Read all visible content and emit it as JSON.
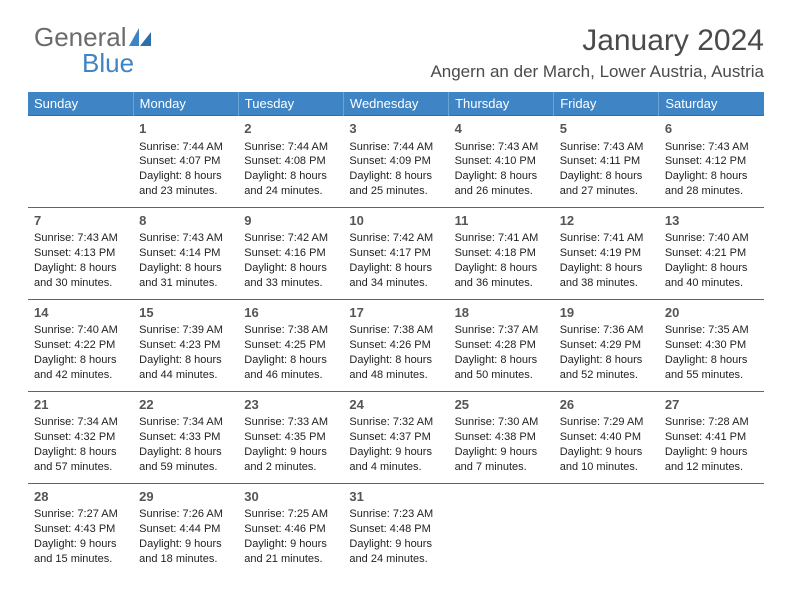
{
  "brand": {
    "part1": "General",
    "part2": "Blue"
  },
  "title": "January 2024",
  "location": "Angern an der March, Lower Austria, Austria",
  "colors": {
    "header_bg": "#3f84c4",
    "header_text": "#ffffff",
    "row_border": "#2f6fa8",
    "brand_gray": "#6b6b6b",
    "brand_blue": "#3f84c4"
  },
  "dayHeaders": [
    "Sunday",
    "Monday",
    "Tuesday",
    "Wednesday",
    "Thursday",
    "Friday",
    "Saturday"
  ],
  "weeks": [
    [
      {
        "num": "",
        "sunrise": "",
        "sunset": "",
        "daylight": ""
      },
      {
        "num": "1",
        "sunrise": "Sunrise: 7:44 AM",
        "sunset": "Sunset: 4:07 PM",
        "daylight": "Daylight: 8 hours and 23 minutes."
      },
      {
        "num": "2",
        "sunrise": "Sunrise: 7:44 AM",
        "sunset": "Sunset: 4:08 PM",
        "daylight": "Daylight: 8 hours and 24 minutes."
      },
      {
        "num": "3",
        "sunrise": "Sunrise: 7:44 AM",
        "sunset": "Sunset: 4:09 PM",
        "daylight": "Daylight: 8 hours and 25 minutes."
      },
      {
        "num": "4",
        "sunrise": "Sunrise: 7:43 AM",
        "sunset": "Sunset: 4:10 PM",
        "daylight": "Daylight: 8 hours and 26 minutes."
      },
      {
        "num": "5",
        "sunrise": "Sunrise: 7:43 AM",
        "sunset": "Sunset: 4:11 PM",
        "daylight": "Daylight: 8 hours and 27 minutes."
      },
      {
        "num": "6",
        "sunrise": "Sunrise: 7:43 AM",
        "sunset": "Sunset: 4:12 PM",
        "daylight": "Daylight: 8 hours and 28 minutes."
      }
    ],
    [
      {
        "num": "7",
        "sunrise": "Sunrise: 7:43 AM",
        "sunset": "Sunset: 4:13 PM",
        "daylight": "Daylight: 8 hours and 30 minutes."
      },
      {
        "num": "8",
        "sunrise": "Sunrise: 7:43 AM",
        "sunset": "Sunset: 4:14 PM",
        "daylight": "Daylight: 8 hours and 31 minutes."
      },
      {
        "num": "9",
        "sunrise": "Sunrise: 7:42 AM",
        "sunset": "Sunset: 4:16 PM",
        "daylight": "Daylight: 8 hours and 33 minutes."
      },
      {
        "num": "10",
        "sunrise": "Sunrise: 7:42 AM",
        "sunset": "Sunset: 4:17 PM",
        "daylight": "Daylight: 8 hours and 34 minutes."
      },
      {
        "num": "11",
        "sunrise": "Sunrise: 7:41 AM",
        "sunset": "Sunset: 4:18 PM",
        "daylight": "Daylight: 8 hours and 36 minutes."
      },
      {
        "num": "12",
        "sunrise": "Sunrise: 7:41 AM",
        "sunset": "Sunset: 4:19 PM",
        "daylight": "Daylight: 8 hours and 38 minutes."
      },
      {
        "num": "13",
        "sunrise": "Sunrise: 7:40 AM",
        "sunset": "Sunset: 4:21 PM",
        "daylight": "Daylight: 8 hours and 40 minutes."
      }
    ],
    [
      {
        "num": "14",
        "sunrise": "Sunrise: 7:40 AM",
        "sunset": "Sunset: 4:22 PM",
        "daylight": "Daylight: 8 hours and 42 minutes."
      },
      {
        "num": "15",
        "sunrise": "Sunrise: 7:39 AM",
        "sunset": "Sunset: 4:23 PM",
        "daylight": "Daylight: 8 hours and 44 minutes."
      },
      {
        "num": "16",
        "sunrise": "Sunrise: 7:38 AM",
        "sunset": "Sunset: 4:25 PM",
        "daylight": "Daylight: 8 hours and 46 minutes."
      },
      {
        "num": "17",
        "sunrise": "Sunrise: 7:38 AM",
        "sunset": "Sunset: 4:26 PM",
        "daylight": "Daylight: 8 hours and 48 minutes."
      },
      {
        "num": "18",
        "sunrise": "Sunrise: 7:37 AM",
        "sunset": "Sunset: 4:28 PM",
        "daylight": "Daylight: 8 hours and 50 minutes."
      },
      {
        "num": "19",
        "sunrise": "Sunrise: 7:36 AM",
        "sunset": "Sunset: 4:29 PM",
        "daylight": "Daylight: 8 hours and 52 minutes."
      },
      {
        "num": "20",
        "sunrise": "Sunrise: 7:35 AM",
        "sunset": "Sunset: 4:30 PM",
        "daylight": "Daylight: 8 hours and 55 minutes."
      }
    ],
    [
      {
        "num": "21",
        "sunrise": "Sunrise: 7:34 AM",
        "sunset": "Sunset: 4:32 PM",
        "daylight": "Daylight: 8 hours and 57 minutes."
      },
      {
        "num": "22",
        "sunrise": "Sunrise: 7:34 AM",
        "sunset": "Sunset: 4:33 PM",
        "daylight": "Daylight: 8 hours and 59 minutes."
      },
      {
        "num": "23",
        "sunrise": "Sunrise: 7:33 AM",
        "sunset": "Sunset: 4:35 PM",
        "daylight": "Daylight: 9 hours and 2 minutes."
      },
      {
        "num": "24",
        "sunrise": "Sunrise: 7:32 AM",
        "sunset": "Sunset: 4:37 PM",
        "daylight": "Daylight: 9 hours and 4 minutes."
      },
      {
        "num": "25",
        "sunrise": "Sunrise: 7:30 AM",
        "sunset": "Sunset: 4:38 PM",
        "daylight": "Daylight: 9 hours and 7 minutes."
      },
      {
        "num": "26",
        "sunrise": "Sunrise: 7:29 AM",
        "sunset": "Sunset: 4:40 PM",
        "daylight": "Daylight: 9 hours and 10 minutes."
      },
      {
        "num": "27",
        "sunrise": "Sunrise: 7:28 AM",
        "sunset": "Sunset: 4:41 PM",
        "daylight": "Daylight: 9 hours and 12 minutes."
      }
    ],
    [
      {
        "num": "28",
        "sunrise": "Sunrise: 7:27 AM",
        "sunset": "Sunset: 4:43 PM",
        "daylight": "Daylight: 9 hours and 15 minutes."
      },
      {
        "num": "29",
        "sunrise": "Sunrise: 7:26 AM",
        "sunset": "Sunset: 4:44 PM",
        "daylight": "Daylight: 9 hours and 18 minutes."
      },
      {
        "num": "30",
        "sunrise": "Sunrise: 7:25 AM",
        "sunset": "Sunset: 4:46 PM",
        "daylight": "Daylight: 9 hours and 21 minutes."
      },
      {
        "num": "31",
        "sunrise": "Sunrise: 7:23 AM",
        "sunset": "Sunset: 4:48 PM",
        "daylight": "Daylight: 9 hours and 24 minutes."
      },
      {
        "num": "",
        "sunrise": "",
        "sunset": "",
        "daylight": ""
      },
      {
        "num": "",
        "sunrise": "",
        "sunset": "",
        "daylight": ""
      },
      {
        "num": "",
        "sunrise": "",
        "sunset": "",
        "daylight": ""
      }
    ]
  ]
}
